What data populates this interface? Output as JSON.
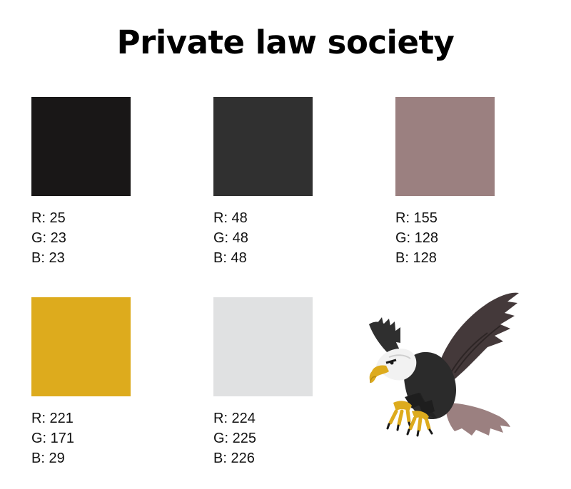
{
  "title": "Private law society",
  "swatches": [
    {
      "color": "#191717",
      "r": "R: 25",
      "g": "G: 23",
      "b": "B: 23"
    },
    {
      "color": "#303030",
      "r": "R: 48",
      "g": "G: 48",
      "b": "B: 48"
    },
    {
      "color": "#9B8080",
      "r": "R: 155",
      "g": "G: 128",
      "b": "B: 128"
    },
    {
      "color": "#DDAB1D",
      "r": "R: 221",
      "g": "G: 171",
      "b": "B: 29"
    },
    {
      "color": "#E0E1E2",
      "r": "R: 224",
      "g": "G: 225",
      "b": "B: 226"
    }
  ],
  "illustration": {
    "icon": "eagle-icon"
  }
}
